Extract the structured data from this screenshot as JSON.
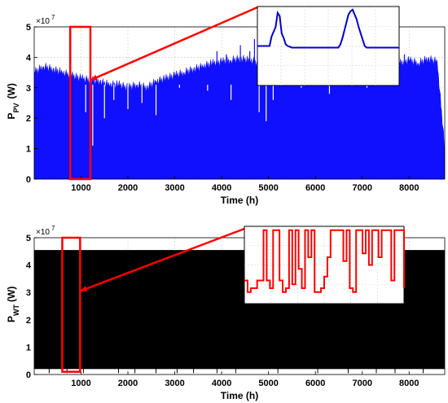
{
  "colors": {
    "pv_fill": "#1010ff",
    "wt_fill": "#000000",
    "highlight": "#ff0000",
    "inset_pv_line": "#0000cc",
    "inset_wt_line": "#ff0000",
    "grid": "#d0d0d0"
  },
  "chart_data": [
    {
      "type": "area",
      "id": "pv",
      "ylabel_main": "P",
      "ylabel_sub": "PV",
      "ylabel_unit": "(W)",
      "xlabel": "Time (h)",
      "exponent_base": "×10",
      "exponent_power": "7",
      "xlim": [
        1,
        8760
      ],
      "ylim": [
        0,
        5
      ],
      "grid": true,
      "xticks": [
        1000,
        2000,
        3000,
        4000,
        5000,
        6000,
        7000,
        8000
      ],
      "yticks": [
        0,
        1,
        2,
        3,
        4,
        5
      ],
      "envelope": {
        "x": [
          1,
          200,
          400,
          600,
          800,
          1000,
          1200,
          1400,
          1600,
          1800,
          2000,
          2200,
          2400,
          2600,
          2800,
          3000,
          3200,
          3400,
          3600,
          3800,
          4000,
          4200,
          4400,
          4600,
          4800,
          5000,
          5200,
          5400,
          5600,
          5800,
          6000,
          6200,
          6400,
          6600,
          6800,
          7000,
          7200,
          7400,
          7600,
          7800,
          8000,
          8200,
          8400,
          8600,
          8760
        ],
        "y": [
          3.5,
          3.7,
          3.6,
          3.5,
          3.4,
          3.3,
          3.25,
          3.2,
          3.1,
          3.1,
          3.0,
          3.1,
          3.0,
          3.2,
          3.3,
          3.4,
          3.5,
          3.6,
          3.7,
          3.8,
          3.85,
          3.9,
          3.95,
          3.9,
          3.8,
          3.9,
          3.7,
          3.6,
          3.6,
          3.5,
          3.55,
          3.6,
          3.65,
          3.7,
          3.75,
          3.7,
          3.75,
          3.8,
          3.85,
          3.8,
          3.9,
          3.8,
          3.95,
          3.85,
          1.0
        ]
      },
      "dips": [
        {
          "x": 1100,
          "y": 2.2
        },
        {
          "x": 1250,
          "y": 1.1
        },
        {
          "x": 1500,
          "y": 2.0
        },
        {
          "x": 1700,
          "y": 2.6
        },
        {
          "x": 2000,
          "y": 2.3
        },
        {
          "x": 2300,
          "y": 2.5
        },
        {
          "x": 2600,
          "y": 2.1
        },
        {
          "x": 3100,
          "y": 3.0
        },
        {
          "x": 3700,
          "y": 2.9
        },
        {
          "x": 4200,
          "y": 2.6
        },
        {
          "x": 4800,
          "y": 2.2
        },
        {
          "x": 4950,
          "y": 1.9
        },
        {
          "x": 5100,
          "y": 2.6
        },
        {
          "x": 5700,
          "y": 3.0
        },
        {
          "x": 6300,
          "y": 2.8
        },
        {
          "x": 7100,
          "y": 3.0
        }
      ],
      "spikes": [
        {
          "x": 3900,
          "y": 4.2
        },
        {
          "x": 4100,
          "y": 4.1
        },
        {
          "x": 4400,
          "y": 4.4
        },
        {
          "x": 4600,
          "y": 4.2
        },
        {
          "x": 4700,
          "y": 4.6
        },
        {
          "x": 5050,
          "y": 4.3
        },
        {
          "x": 7900,
          "y": 4.1
        }
      ],
      "highlight": {
        "x0": 770,
        "x1": 1200,
        "y0": 0,
        "y1": 5.0
      },
      "arrow_from": {
        "x": 1200,
        "y": 3.25
      },
      "inset": {
        "x": [
          0,
          6,
          7,
          8,
          9,
          10,
          11,
          12,
          13,
          14,
          15,
          16,
          17,
          30,
          40,
          41,
          42,
          43,
          44,
          45,
          46,
          47,
          48,
          49,
          50,
          51,
          52,
          53,
          54,
          70
        ],
        "y": [
          0.5,
          0.5,
          0.62,
          0.68,
          0.74,
          0.92,
          0.88,
          0.66,
          0.6,
          0.52,
          0.5,
          0.49,
          0.48,
          0.48,
          0.48,
          0.52,
          0.6,
          0.7,
          0.8,
          0.9,
          0.94,
          0.96,
          0.9,
          0.84,
          0.74,
          0.66,
          0.58,
          0.5,
          0.48,
          0.48
        ]
      }
    },
    {
      "type": "area",
      "id": "wt",
      "ylabel_main": "P",
      "ylabel_sub": "WT",
      "ylabel_unit": "(W)",
      "xlabel": "Time (h)",
      "exponent_base": "×10",
      "exponent_power": "7",
      "xlim": [
        1,
        8760
      ],
      "ylim": [
        0,
        5
      ],
      "grid": true,
      "xticks": [
        1000,
        2000,
        3000,
        4000,
        5000,
        6000,
        7000,
        8000
      ],
      "yticks": [
        0,
        1,
        2,
        3,
        4,
        5
      ],
      "rated": 4.55,
      "base": 0.2,
      "gaps": [
        {
          "x": 320,
          "y": 0.3
        },
        {
          "x": 700,
          "y": 0.4
        },
        {
          "x": 1050,
          "y": 0.5
        },
        {
          "x": 1800,
          "y": 0.3
        },
        {
          "x": 2150,
          "y": 0.45
        },
        {
          "x": 2600,
          "y": 0.35
        },
        {
          "x": 3050,
          "y": 0.5
        },
        {
          "x": 3400,
          "y": 0.4
        },
        {
          "x": 3900,
          "y": 0.6
        },
        {
          "x": 4300,
          "y": 0.3
        },
        {
          "x": 5200,
          "y": 0.45
        },
        {
          "x": 6050,
          "y": 0.35
        },
        {
          "x": 6700,
          "y": 0.5
        },
        {
          "x": 7300,
          "y": 0.4
        },
        {
          "x": 7700,
          "y": 0.55
        },
        {
          "x": 8300,
          "y": 0.4
        }
      ],
      "highlight": {
        "x0": 600,
        "x1": 980,
        "y0": 0.1,
        "y1": 5.0
      },
      "arrow_from": {
        "x": 980,
        "y": 3.05
      },
      "inset": {
        "x": [
          0,
          1,
          2,
          3,
          4,
          5,
          6,
          7,
          8,
          9,
          10,
          11,
          12,
          13,
          14,
          15,
          16,
          17,
          18,
          19,
          20,
          21,
          22,
          23,
          24,
          25,
          26,
          27,
          28,
          29,
          30,
          31,
          32,
          33,
          34,
          35,
          36,
          37,
          38,
          39,
          40,
          41,
          42,
          43,
          44,
          45,
          46,
          47,
          48,
          49,
          50
        ],
        "y": [
          0.3,
          0.15,
          0.2,
          0.2,
          0.3,
          0.3,
          0.95,
          0.3,
          0.2,
          0.95,
          0.95,
          0.3,
          0.15,
          0.2,
          0.95,
          0.25,
          0.95,
          0.45,
          0.2,
          0.95,
          0.6,
          0.95,
          0.15,
          0.15,
          0.2,
          0.35,
          0.6,
          0.95,
          0.95,
          0.95,
          0.95,
          0.55,
          0.95,
          0.2,
          0.15,
          0.95,
          0.95,
          0.65,
          0.95,
          0.5,
          0.95,
          0.95,
          0.6,
          0.95,
          0.95,
          0.95,
          0.3,
          0.95,
          0.95,
          0.95,
          0.2
        ]
      }
    }
  ]
}
